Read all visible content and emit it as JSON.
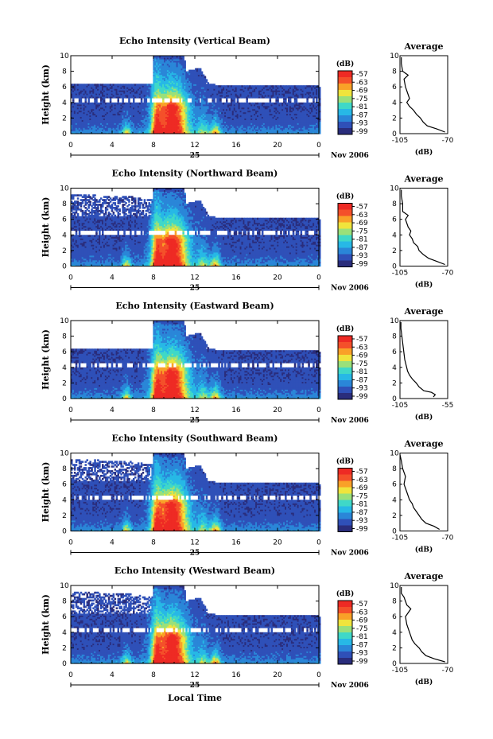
{
  "chart_data": [
    {
      "type": "heatmap",
      "title": "Echo Intensity (Vertical Beam)",
      "ylabel": "Height (km)",
      "x_ticks": [
        "0",
        "4",
        "8",
        "12",
        "16",
        "20",
        "0"
      ],
      "y_ticks": [
        "0",
        "2",
        "4",
        "6",
        "8",
        "10"
      ],
      "xlim": [
        0,
        24
      ],
      "ylim": [
        0,
        10
      ],
      "day_label": "25",
      "date_label": "Nov 2006",
      "colorbar": {
        "unit": "(dB)",
        "ticks": [
          "-57",
          "-63",
          "-69",
          "-75",
          "-81",
          "-87",
          "-93",
          "-99"
        ]
      },
      "cloud_top_km": {
        "hours": [
          0,
          5.5,
          7.9,
          8.0,
          11.0,
          11.1,
          12.5,
          13.3,
          14.0,
          16.5,
          20.0,
          24.0
        ],
        "tops": [
          6.5,
          6.5,
          6.5,
          10.0,
          10.0,
          8.0,
          8.5,
          6.5,
          6.3,
          6.3,
          6.3,
          6.1
        ]
      },
      "profile": {
        "title": "Average",
        "xlabel": "(dB)",
        "x_ticks": [
          "-105",
          "-70"
        ],
        "xlim": [
          -105,
          -70
        ],
        "y_ticks": [
          "0",
          "2",
          "4",
          "6",
          "8",
          "10"
        ],
        "heights_km": [
          0.2,
          0.6,
          1.0,
          1.5,
          2.0,
          2.5,
          3.0,
          3.5,
          4.0,
          4.5,
          5.0,
          6.0,
          7.0,
          7.5,
          8.0,
          9.0,
          9.8
        ],
        "values_db": [
          -72,
          -78,
          -85,
          -88,
          -90,
          -93,
          -95,
          -98,
          -100,
          -98,
          -99,
          -101,
          -102,
          -99,
          -103,
          -104,
          -104
        ]
      }
    },
    {
      "type": "heatmap",
      "title": "Echo Intensity (Northward Beam)",
      "ylabel": "Height (km)",
      "x_ticks": [
        "0",
        "4",
        "8",
        "12",
        "16",
        "20",
        "0"
      ],
      "y_ticks": [
        "0",
        "2",
        "4",
        "6",
        "8",
        "10"
      ],
      "xlim": [
        0,
        24
      ],
      "ylim": [
        0,
        10
      ],
      "day_label": "25",
      "date_label": "Nov 2006",
      "colorbar": {
        "unit": "(dB)",
        "ticks": [
          "-57",
          "-63",
          "-69",
          "-75",
          "-81",
          "-87",
          "-93",
          "-99"
        ]
      },
      "cloud_top_km": {
        "hours": [
          0,
          5.5,
          7.9,
          8.0,
          11.0,
          11.1,
          12.5,
          13.3,
          14.0,
          16.5,
          20.0,
          24.0
        ],
        "tops": [
          9.2,
          9.0,
          8.5,
          10.0,
          10.0,
          8.0,
          8.5,
          6.5,
          6.3,
          6.3,
          6.3,
          6.1
        ]
      },
      "profile": {
        "title": "Average",
        "xlabel": "(dB)",
        "x_ticks": [
          "-105",
          "-70"
        ],
        "xlim": [
          -105,
          -70
        ],
        "y_ticks": [
          "0",
          "2",
          "4",
          "6",
          "8",
          "10"
        ],
        "heights_km": [
          0.2,
          0.6,
          1.0,
          1.5,
          2.0,
          2.5,
          3.0,
          3.5,
          4.0,
          4.5,
          5.0,
          6.0,
          6.5,
          7.0,
          8.0,
          9.0,
          9.8
        ],
        "values_db": [
          -72,
          -78,
          -84,
          -88,
          -91,
          -92,
          -95,
          -96,
          -98,
          -97,
          -99,
          -101,
          -99,
          -103,
          -103,
          -104,
          -104
        ]
      }
    },
    {
      "type": "heatmap",
      "title": "Echo Intensity (Eastward Beam)",
      "ylabel": "Height (km)",
      "x_ticks": [
        "0",
        "4",
        "8",
        "12",
        "16",
        "20",
        "0"
      ],
      "y_ticks": [
        "0",
        "2",
        "4",
        "6",
        "8",
        "10"
      ],
      "xlim": [
        0,
        24
      ],
      "ylim": [
        0,
        10
      ],
      "day_label": "25",
      "date_label": "Nov 2006",
      "colorbar": {
        "unit": "(dB)",
        "ticks": [
          "-57",
          "-63",
          "-69",
          "-75",
          "-81",
          "-87",
          "-93",
          "-99"
        ]
      },
      "cloud_top_km": {
        "hours": [
          0,
          5.5,
          7.9,
          8.0,
          11.0,
          11.1,
          12.5,
          13.3,
          14.0,
          16.5,
          20.0,
          24.0
        ],
        "tops": [
          6.5,
          6.5,
          6.5,
          10.0,
          10.0,
          8.0,
          8.5,
          6.5,
          6.3,
          6.3,
          6.3,
          6.1
        ]
      },
      "profile": {
        "title": "Average",
        "xlabel": "(dB)",
        "x_ticks": [
          "-105",
          "-55"
        ],
        "xlim": [
          -105,
          -55
        ],
        "y_ticks": [
          "0",
          "2",
          "4",
          "6",
          "8",
          "10"
        ],
        "heights_km": [
          0.2,
          0.5,
          0.8,
          1.0,
          1.5,
          2.0,
          2.5,
          3.0,
          3.5,
          4.0,
          5.0,
          6.0,
          7.0,
          8.0,
          9.0,
          9.8
        ],
        "values_db": [
          -70,
          -68,
          -72,
          -80,
          -85,
          -88,
          -92,
          -95,
          -97,
          -98,
          -100,
          -101,
          -102,
          -103,
          -104,
          -104
        ]
      }
    },
    {
      "type": "heatmap",
      "title": "Echo Intensity (Southward Beam)",
      "ylabel": "Height (km)",
      "x_ticks": [
        "0",
        "4",
        "8",
        "12",
        "16",
        "20",
        "0"
      ],
      "y_ticks": [
        "0",
        "2",
        "4",
        "6",
        "8",
        "10"
      ],
      "xlim": [
        0,
        24
      ],
      "ylim": [
        0,
        10
      ],
      "day_label": "25",
      "date_label": "Nov 2006",
      "colorbar": {
        "unit": "(dB)",
        "ticks": [
          "-57",
          "-63",
          "-69",
          "-75",
          "-81",
          "-87",
          "-93",
          "-99"
        ]
      },
      "cloud_top_km": {
        "hours": [
          0,
          5.5,
          7.9,
          8.0,
          11.0,
          11.1,
          12.5,
          13.3,
          14.0,
          16.5,
          20.0,
          24.0
        ],
        "tops": [
          9.2,
          9.0,
          8.5,
          10.0,
          10.0,
          8.0,
          8.5,
          6.5,
          6.3,
          6.3,
          6.3,
          6.1
        ]
      },
      "profile": {
        "title": "Average",
        "xlabel": "(dB)",
        "x_ticks": [
          "-105",
          "-70"
        ],
        "xlim": [
          -105,
          -70
        ],
        "y_ticks": [
          "0",
          "2",
          "4",
          "6",
          "8",
          "10"
        ],
        "heights_km": [
          0.2,
          0.6,
          1.0,
          1.5,
          2.0,
          2.5,
          3.0,
          3.5,
          4.0,
          4.5,
          5.0,
          6.0,
          7.0,
          8.0,
          9.0,
          9.8
        ],
        "values_db": [
          -76,
          -80,
          -86,
          -89,
          -91,
          -93,
          -95,
          -96,
          -98,
          -99,
          -100,
          -102,
          -101,
          -103,
          -104,
          -105
        ]
      }
    },
    {
      "type": "heatmap",
      "title": "Echo Intensity (Westward Beam)",
      "ylabel": "Height (km)",
      "xlabel": "Local Time",
      "x_ticks": [
        "0",
        "4",
        "8",
        "12",
        "16",
        "20",
        "0"
      ],
      "y_ticks": [
        "0",
        "2",
        "4",
        "6",
        "8",
        "10"
      ],
      "xlim": [
        0,
        24
      ],
      "ylim": [
        0,
        10
      ],
      "day_label": "25",
      "date_label": "Nov 2006",
      "colorbar": {
        "unit": "(dB)",
        "ticks": [
          "-57",
          "-63",
          "-69",
          "-75",
          "-81",
          "-87",
          "-93",
          "-99"
        ]
      },
      "cloud_top_km": {
        "hours": [
          0,
          5.5,
          7.9,
          8.0,
          11.0,
          11.1,
          12.5,
          13.3,
          14.0,
          16.5,
          20.0,
          24.0
        ],
        "tops": [
          9.2,
          9.0,
          8.5,
          10.0,
          10.0,
          8.0,
          8.5,
          6.5,
          6.3,
          6.3,
          6.3,
          6.1
        ]
      },
      "profile": {
        "title": "Average",
        "xlabel": "(dB)",
        "x_ticks": [
          "-105",
          "-70"
        ],
        "xlim": [
          -105,
          -70
        ],
        "y_ticks": [
          "0",
          "2",
          "4",
          "6",
          "8",
          "10"
        ],
        "heights_km": [
          0.2,
          0.6,
          1.0,
          1.5,
          2.0,
          2.5,
          3.0,
          3.5,
          4.0,
          5.0,
          6.0,
          7.0,
          7.5,
          8.5,
          9.0,
          9.8
        ],
        "values_db": [
          -72,
          -80,
          -86,
          -89,
          -91,
          -94,
          -96,
          -97,
          -98,
          -100,
          -101,
          -97,
          -100,
          -102,
          -104,
          -104
        ]
      }
    }
  ],
  "colors": {
    "scale": [
      "#2a2d7c",
      "#2f50b8",
      "#2a86d8",
      "#27b8e6",
      "#3fd8c8",
      "#9ae07a",
      "#f0e43c",
      "#f9a128",
      "#f4502a",
      "#ee2a24"
    ],
    "background": "#ffffff"
  }
}
